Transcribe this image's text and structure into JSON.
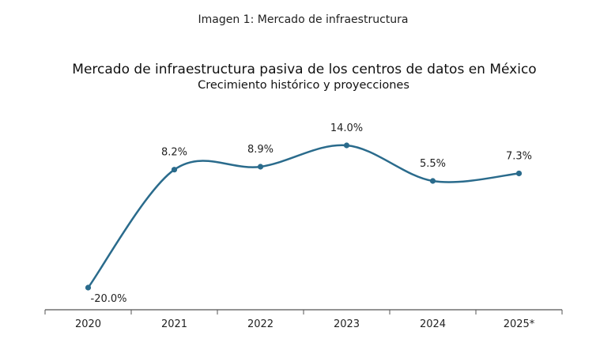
{
  "caption": "Imagen 1: Mercado de infraestructura",
  "chart_data": {
    "type": "line",
    "title": "Mercado de infraestructura pasiva de los centros de datos en México",
    "subtitle": "Crecimiento histórico y proyecciones",
    "xlabel": "",
    "ylabel": "",
    "categories": [
      "2020",
      "2021",
      "2022",
      "2023",
      "2024",
      "2025*"
    ],
    "series": [
      {
        "values": [
          -20.0,
          8.2,
          8.9,
          14.0,
          5.5,
          7.3
        ],
        "labels": [
          "-20.0%",
          "8.2%",
          "8.9%",
          "14.0%",
          "5.5%",
          "7.3%"
        ]
      }
    ],
    "ylim": [
      -20,
      14
    ],
    "grid": false,
    "smooth": true,
    "line_color": "#2a6b8c",
    "axis_color": "#555555"
  }
}
